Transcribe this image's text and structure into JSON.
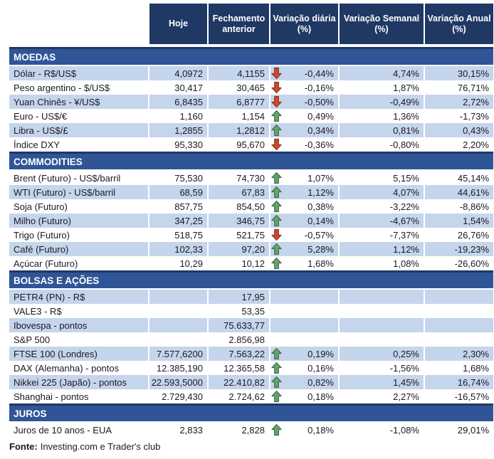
{
  "header": {
    "columns": [
      "Hoje",
      "Fechamento anterior",
      "Variação diária (%)",
      "Variação Semanal (%)",
      "Variação Anual (%)"
    ]
  },
  "sections": [
    {
      "title": "MOEDAS",
      "rows": [
        {
          "label": "Dólar - R$/US$",
          "hoje": "4,0972",
          "fechamento": "4,1155",
          "arrow": "down",
          "diaria": "-0,44%",
          "semanal": "4,74%",
          "anual": "30,15%"
        },
        {
          "label": "Peso argentino - $/US$",
          "hoje": "30,417",
          "fechamento": "30,465",
          "arrow": "down",
          "diaria": "-0,16%",
          "semanal": "1,87%",
          "anual": "76,71%"
        },
        {
          "label": "Yuan Chinês - ¥/US$",
          "hoje": "6,8435",
          "fechamento": "6,8777",
          "arrow": "down",
          "diaria": "-0,50%",
          "semanal": "-0,49%",
          "anual": "2,72%"
        },
        {
          "label": "Euro - US$/€",
          "hoje": "1,160",
          "fechamento": "1,154",
          "arrow": "up",
          "diaria": "0,49%",
          "semanal": "1,36%",
          "anual": "-1,73%"
        },
        {
          "label": "Libra - US$/£",
          "hoje": "1,2855",
          "fechamento": "1,2812",
          "arrow": "up",
          "diaria": "0,34%",
          "semanal": "0,81%",
          "anual": "0,43%"
        },
        {
          "label": "Índice DXY",
          "hoje": "95,330",
          "fechamento": "95,670",
          "arrow": "down",
          "diaria": "-0,36%",
          "semanal": "-0,80%",
          "anual": "2,20%"
        }
      ]
    },
    {
      "title": "COMMODITIES",
      "rows": [
        {
          "label": "Brent (Futuro) - US$/barril",
          "hoje": "75,530",
          "fechamento": "74,730",
          "arrow": "up",
          "diaria": "1,07%",
          "semanal": "5,15%",
          "anual": "45,14%"
        },
        {
          "label": "WTI (Futuro) - US$/barril",
          "hoje": "68,59",
          "fechamento": "67,83",
          "arrow": "up",
          "diaria": "1,12%",
          "semanal": "4,07%",
          "anual": "44,61%"
        },
        {
          "label": "Soja (Futuro)",
          "hoje": "857,75",
          "fechamento": "854,50",
          "arrow": "up",
          "diaria": "0,38%",
          "semanal": "-3,22%",
          "anual": "-8,86%"
        },
        {
          "label": "Milho (Futuro)",
          "hoje": "347,25",
          "fechamento": "346,75",
          "arrow": "up",
          "diaria": "0,14%",
          "semanal": "-4,67%",
          "anual": "1,54%"
        },
        {
          "label": "Trigo (Futuro)",
          "hoje": "518,75",
          "fechamento": "521,75",
          "arrow": "down",
          "diaria": "-0,57%",
          "semanal": "-7,37%",
          "anual": "26,76%"
        },
        {
          "label": "Café (Futuro)",
          "hoje": "102,33",
          "fechamento": "97,20",
          "arrow": "up",
          "diaria": "5,28%",
          "semanal": "1,12%",
          "anual": "-19,23%"
        },
        {
          "label": "Açúcar (Futuro)",
          "hoje": "10,29",
          "fechamento": "10,12",
          "arrow": "up",
          "diaria": "1,68%",
          "semanal": "1,08%",
          "anual": "-26,60%"
        }
      ]
    },
    {
      "title": "BOLSAS E AÇÕES",
      "rows": [
        {
          "label": "PETR4 (PN) - R$",
          "hoje": "",
          "fechamento": "17,95",
          "arrow": null,
          "diaria": "",
          "semanal": "",
          "anual": ""
        },
        {
          "label": "VALE3 - R$",
          "hoje": "",
          "fechamento": "53,35",
          "arrow": null,
          "diaria": "",
          "semanal": "",
          "anual": ""
        },
        {
          "label": "Ibovespa - pontos",
          "hoje": "",
          "fechamento": "75.633,77",
          "arrow": null,
          "diaria": "",
          "semanal": "",
          "anual": ""
        },
        {
          "label": "S&P 500",
          "hoje": "",
          "fechamento": "2.856,98",
          "arrow": null,
          "diaria": "",
          "semanal": "",
          "anual": ""
        },
        {
          "label": "FTSE 100 (Londres)",
          "hoje": "7.577,6200",
          "fechamento": "7.563,22",
          "arrow": "up",
          "diaria": "0,19%",
          "semanal": "0,25%",
          "anual": "2,30%"
        },
        {
          "label": "DAX (Alemanha) - pontos",
          "hoje": "12.385,190",
          "fechamento": "12.365,58",
          "arrow": "up",
          "diaria": "0,16%",
          "semanal": "-1,56%",
          "anual": "1,68%"
        },
        {
          "label": "Nikkei 225 (Japão) - pontos",
          "hoje": "22.593,5000",
          "fechamento": "22.410,82",
          "arrow": "up",
          "diaria": "0,82%",
          "semanal": "1,45%",
          "anual": "16,74%"
        },
        {
          "label": "Shanghai - pontos",
          "hoje": "2.729,430",
          "fechamento": "2.724,62",
          "arrow": "up",
          "diaria": "0,18%",
          "semanal": "2,27%",
          "anual": "-16,57%"
        }
      ]
    },
    {
      "title": "JUROS",
      "rows": [
        {
          "label": "Juros de 10 anos - EUA",
          "hoje": "2,833",
          "fechamento": "2,828",
          "arrow": "up",
          "diaria": "0,18%",
          "semanal": "-1,08%",
          "anual": "29,01%"
        }
      ]
    }
  ],
  "footer": {
    "label": "Fonte:",
    "text": "Investing.com e Trader's club"
  },
  "colors": {
    "header_bg": "#1F3864",
    "section_bg": "#2F5597",
    "row_shaded": "#C5D5EC",
    "arrow_up_fill": "#67A46F",
    "arrow_up_stroke": "#3E6B47",
    "arrow_down_fill": "#CE4A2E",
    "arrow_down_stroke": "#8E3423",
    "text": "#191923"
  }
}
